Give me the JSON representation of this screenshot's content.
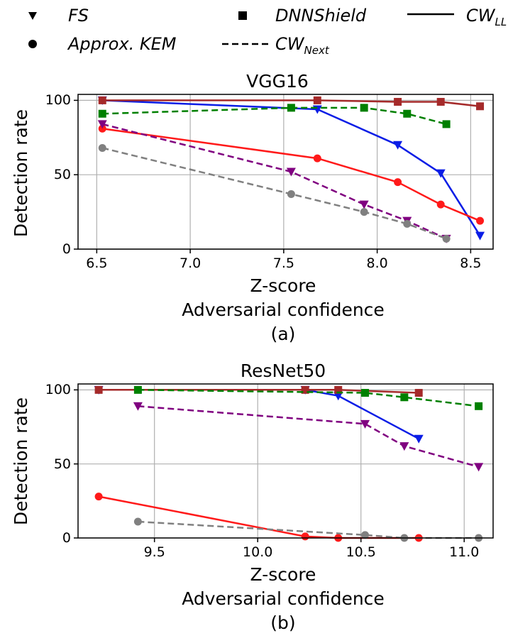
{
  "legend": {
    "fs": "FS",
    "dnnshield": "DNNShield",
    "cw_ll_base": "CW",
    "cw_ll_sub": "LL",
    "approx_kem": "Approx. KEM",
    "cw_next_base": "CW",
    "cw_next_sub": "Next"
  },
  "colors": {
    "cw_ll_fs": "#0a1de6",
    "cw_ll_dnnshield": "#a52a2a",
    "cw_ll_kem": "#ff1a1a",
    "cw_next_fs": "#800080",
    "cw_next_dnnshield": "#008000",
    "cw_next_kem": "#808080"
  },
  "chart_data": [
    {
      "type": "line",
      "title": "VGG16",
      "xlabel": "Z-score",
      "sublabel": "Adversarial confidence",
      "caption": "(a)",
      "ylabel": "Detection rate",
      "xlim": [
        6.4,
        8.62
      ],
      "ylim": [
        0,
        104
      ],
      "xticks": [
        6.5,
        7.0,
        7.5,
        8.0,
        8.5
      ],
      "xtick_labels": [
        "6.5",
        "7.0",
        "7.5",
        "8.0",
        "8.5"
      ],
      "yticks": [
        0,
        50,
        100
      ],
      "ytick_labels": [
        "0",
        "50",
        "100"
      ],
      "grid": true,
      "series": [
        {
          "name": "CW_LL FS",
          "method": "FS",
          "attack": "CW_LL",
          "marker": "triangle-down",
          "dashed": false,
          "color_key": "cw_ll_fs",
          "x": [
            6.53,
            7.68,
            8.11,
            8.34,
            8.55
          ],
          "y": [
            100,
            94,
            70,
            51,
            9
          ]
        },
        {
          "name": "CW_LL DNNShield",
          "method": "DNNShield",
          "attack": "CW_LL",
          "marker": "square",
          "dashed": false,
          "color_key": "cw_ll_dnnshield",
          "x": [
            6.53,
            7.68,
            8.11,
            8.34,
            8.55
          ],
          "y": [
            100,
            100,
            99,
            99,
            96
          ]
        },
        {
          "name": "CW_LL Approx. KEM",
          "method": "Approx. KEM",
          "attack": "CW_LL",
          "marker": "circle",
          "dashed": false,
          "color_key": "cw_ll_kem",
          "x": [
            6.53,
            7.68,
            8.11,
            8.34,
            8.55
          ],
          "y": [
            81,
            61,
            45,
            30,
            19
          ]
        },
        {
          "name": "CW_Next FS",
          "method": "FS",
          "attack": "CW_Next",
          "marker": "triangle-down",
          "dashed": true,
          "color_key": "cw_next_fs",
          "x": [
            6.53,
            7.54,
            7.93,
            8.16,
            8.37
          ],
          "y": [
            84,
            52,
            30,
            19,
            7
          ]
        },
        {
          "name": "CW_Next DNNShield",
          "method": "DNNShield",
          "attack": "CW_Next",
          "marker": "square",
          "dashed": true,
          "color_key": "cw_next_dnnshield",
          "x": [
            6.53,
            7.54,
            7.93,
            8.16,
            8.37
          ],
          "y": [
            91,
            95,
            95,
            91,
            84
          ]
        },
        {
          "name": "CW_Next Approx. KEM",
          "method": "Approx. KEM",
          "attack": "CW_Next",
          "marker": "circle",
          "dashed": true,
          "color_key": "cw_next_kem",
          "x": [
            6.53,
            7.54,
            7.93,
            8.16,
            8.37
          ],
          "y": [
            68,
            37,
            25,
            17,
            7
          ]
        }
      ]
    },
    {
      "type": "line",
      "title": "ResNet50",
      "xlabel": "Z-score",
      "sublabel": "Adversarial confidence",
      "caption": "(b)",
      "ylabel": "Detection rate",
      "xlim": [
        9.13,
        11.14
      ],
      "ylim": [
        0,
        104
      ],
      "xticks": [
        9.5,
        10.0,
        10.5,
        11.0
      ],
      "xtick_labels": [
        "9.5",
        "10.0",
        "10.5",
        "11.0"
      ],
      "yticks": [
        0,
        50,
        100
      ],
      "ytick_labels": [
        "0",
        "50",
        "100"
      ],
      "grid": true,
      "series": [
        {
          "name": "CW_LL FS",
          "method": "FS",
          "attack": "CW_LL",
          "marker": "triangle-down",
          "dashed": false,
          "color_key": "cw_ll_fs",
          "x": [
            9.23,
            10.23,
            10.39,
            10.78
          ],
          "y": [
            100,
            100,
            96,
            67
          ]
        },
        {
          "name": "CW_LL DNNShield",
          "method": "DNNShield",
          "attack": "CW_LL",
          "marker": "square",
          "dashed": false,
          "color_key": "cw_ll_dnnshield",
          "x": [
            9.23,
            10.23,
            10.39,
            10.78
          ],
          "y": [
            100,
            100,
            100,
            98
          ]
        },
        {
          "name": "CW_LL Approx. KEM",
          "method": "Approx. KEM",
          "attack": "CW_LL",
          "marker": "circle",
          "dashed": false,
          "color_key": "cw_ll_kem",
          "x": [
            9.23,
            10.23,
            10.39,
            10.78
          ],
          "y": [
            28,
            1,
            0,
            0
          ]
        },
        {
          "name": "CW_Next FS",
          "method": "FS",
          "attack": "CW_Next",
          "marker": "triangle-down",
          "dashed": true,
          "color_key": "cw_next_fs",
          "x": [
            9.42,
            10.52,
            10.71,
            11.07
          ],
          "y": [
            89,
            77,
            62,
            48
          ]
        },
        {
          "name": "CW_Next DNNShield",
          "method": "DNNShield",
          "attack": "CW_Next",
          "marker": "square",
          "dashed": true,
          "color_key": "cw_next_dnnshield",
          "x": [
            9.42,
            10.52,
            10.71,
            11.07
          ],
          "y": [
            100,
            98,
            95,
            89
          ]
        },
        {
          "name": "CW_Next Approx. KEM",
          "method": "Approx. KEM",
          "attack": "CW_Next",
          "marker": "circle",
          "dashed": true,
          "color_key": "cw_next_kem",
          "x": [
            9.42,
            10.52,
            10.71,
            11.07
          ],
          "y": [
            11,
            2,
            0,
            0
          ]
        }
      ]
    }
  ]
}
